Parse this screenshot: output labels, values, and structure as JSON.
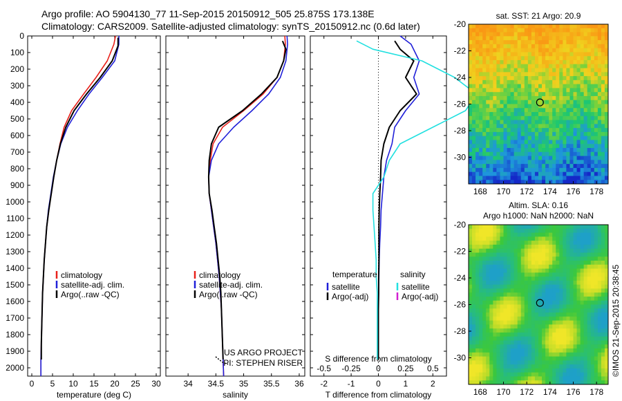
{
  "header": {
    "line1": "Argo profile: AO 5904130_77 11-Sep-2015 20150912_505 25.875S 173.138E",
    "line2": "Climatology: CARS2009. Satellite-adjusted climatology: synTS_20150912.nc (0.6d later)"
  },
  "side_stamp": "©IMOS 21-Sep-2015 20:38:45",
  "colors": {
    "climatology": "#e8201a",
    "satellite": "#1f1fd8",
    "argo": "#000000",
    "salinity_sat": "#22e0e0",
    "argo_adj": "#d020d0"
  },
  "chart_data": [
    {
      "type": "line",
      "xlabel": "temperature (deg C)",
      "xlim": [
        -1,
        31
      ],
      "xticks": [
        0,
        5,
        10,
        15,
        20,
        25,
        30
      ],
      "ylim": [
        2050,
        0
      ],
      "yticks": [
        0,
        100,
        200,
        300,
        400,
        500,
        600,
        700,
        800,
        900,
        1000,
        1100,
        1200,
        1300,
        1400,
        1500,
        1600,
        1700,
        1800,
        1900,
        2000
      ],
      "legend": {
        "placement": "lower-center",
        "entries": [
          "climatology",
          "satellite-adj. clim.",
          "Argo(..raw -QC)"
        ]
      },
      "series": [
        {
          "name": "climatology",
          "color": "#e8201a",
          "x": [
            20.2,
            19.8,
            18.2,
            15.5,
            12.5,
            9.6,
            7.8,
            6.8,
            6.0,
            5.3,
            4.7,
            4.1,
            3.6,
            3.3,
            3.0,
            2.8,
            2.6,
            2.5,
            2.4,
            2.3,
            2.2,
            2.2
          ],
          "y": [
            0,
            50,
            150,
            250,
            350,
            450,
            550,
            650,
            750,
            850,
            950,
            1050,
            1150,
            1250,
            1350,
            1450,
            1550,
            1650,
            1750,
            1850,
            1950,
            2050
          ]
        },
        {
          "name": "satellite-adj. clim.",
          "color": "#1f1fd8",
          "x": [
            21.0,
            21.0,
            20.0,
            17.0,
            13.8,
            11.0,
            8.6,
            7.0,
            6.0,
            5.2,
            4.6,
            4.0,
            3.6,
            3.3,
            3.0,
            2.8,
            2.6,
            2.5,
            2.4,
            2.3,
            2.2,
            2.2
          ],
          "y": [
            0,
            50,
            150,
            250,
            350,
            450,
            550,
            650,
            750,
            850,
            950,
            1050,
            1150,
            1250,
            1350,
            1450,
            1550,
            1650,
            1750,
            1850,
            1950,
            2050
          ]
        },
        {
          "name": "Argo(..raw -QC)",
          "color": "#000000",
          "x": [
            20.8,
            20.8,
            19.4,
            16.5,
            13.2,
            10.2,
            8.2,
            6.9,
            6.0,
            5.3,
            4.7,
            4.1,
            3.6,
            3.3,
            3.0,
            2.8,
            2.6,
            2.5,
            2.4,
            2.3,
            2.3
          ],
          "y": [
            10,
            60,
            150,
            250,
            350,
            450,
            550,
            650,
            750,
            850,
            950,
            1050,
            1150,
            1250,
            1350,
            1450,
            1550,
            1650,
            1750,
            1850,
            1950
          ]
        }
      ]
    },
    {
      "type": "line",
      "xlabel": "salinity",
      "xlim": [
        33.6,
        36.1
      ],
      "xticks": [
        34,
        34.5,
        35,
        35.5,
        36
      ],
      "ylim": [
        2050,
        0
      ],
      "legend": {
        "placement": "lower-center",
        "entries": [
          "climatology",
          "satellite-adj. clim.",
          "Argo(..raw -QC)"
        ]
      },
      "annotations": [
        "US ARGO PROJECT",
        "PI: STEPHEN RISER"
      ],
      "series": [
        {
          "name": "climatology",
          "color": "#e8201a",
          "x": [
            35.74,
            35.75,
            35.72,
            35.6,
            35.35,
            35.0,
            34.62,
            34.45,
            34.4,
            34.37,
            34.38,
            34.42,
            34.46,
            34.5,
            34.53,
            34.56,
            34.58,
            34.6,
            34.61,
            34.62,
            34.63,
            34.64
          ],
          "y": [
            0,
            50,
            150,
            250,
            350,
            450,
            550,
            650,
            750,
            850,
            950,
            1050,
            1150,
            1250,
            1350,
            1450,
            1550,
            1650,
            1750,
            1850,
            1950,
            2050
          ]
        },
        {
          "name": "satellite-adj. clim.",
          "color": "#1f1fd8",
          "x": [
            35.78,
            35.79,
            35.76,
            35.66,
            35.45,
            35.15,
            34.82,
            34.55,
            34.42,
            34.37,
            34.38,
            34.42,
            34.46,
            34.5,
            34.53,
            34.56,
            34.58,
            34.6,
            34.61,
            34.62,
            34.63,
            34.64
          ],
          "y": [
            0,
            50,
            150,
            250,
            350,
            450,
            550,
            650,
            750,
            850,
            950,
            1050,
            1150,
            1250,
            1350,
            1450,
            1550,
            1650,
            1750,
            1850,
            1950,
            2050
          ]
        },
        {
          "name": "Argo(..raw -QC)",
          "color": "#000000",
          "x": [
            35.7,
            35.76,
            35.72,
            35.6,
            35.32,
            34.98,
            34.55,
            34.42,
            34.38,
            34.37,
            34.38,
            34.43,
            34.47,
            34.51,
            34.54,
            34.57,
            34.59,
            34.6,
            34.61,
            34.62,
            34.63
          ],
          "y": [
            30,
            80,
            150,
            250,
            350,
            450,
            550,
            650,
            750,
            850,
            950,
            1050,
            1150,
            1250,
            1350,
            1450,
            1550,
            1650,
            1750,
            1850,
            1950
          ]
        }
      ]
    },
    {
      "type": "line",
      "xlabel": "T difference from climatology",
      "xlabel2": "S difference from climatology",
      "xlim": [
        -2.5,
        2.5
      ],
      "xticks": [
        -2,
        -1,
        0,
        1,
        2
      ],
      "x2ticks": [
        -0.5,
        -0.25,
        0,
        0.25,
        0.5
      ],
      "ylim": [
        2050,
        0
      ],
      "legend": {
        "placement": "lower-center",
        "left_title": "temperature",
        "right_title": "salinity",
        "entries_left": [
          "satellite",
          "Argo(-adj)"
        ],
        "entries_right": [
          "satellite",
          "Argo(-adj)"
        ]
      },
      "series": [
        {
          "name": "T satellite",
          "color": "#1f1fd8",
          "x": [
            0.8,
            1.2,
            1.5,
            1.3,
            1.5,
            1.0,
            0.6,
            0.5,
            0.3,
            0.2,
            0.15,
            0.1,
            0.08,
            0.05,
            0.03,
            0.02,
            0.01,
            0,
            0,
            0,
            0
          ],
          "y": [
            0,
            50,
            150,
            250,
            350,
            450,
            550,
            650,
            750,
            850,
            950,
            1050,
            1150,
            1250,
            1350,
            1450,
            1550,
            1650,
            1750,
            1850,
            1950
          ]
        },
        {
          "name": "T Argo(-adj)",
          "color": "#000000",
          "x": [
            0.6,
            0.8,
            1.3,
            1.0,
            1.4,
            0.8,
            0.4,
            0.2,
            0.1,
            0.08,
            0.05,
            0.03,
            0.02,
            0.02,
            0.02,
            0.01,
            0.01,
            0,
            0,
            0,
            0
          ],
          "y": [
            30,
            80,
            150,
            250,
            350,
            450,
            550,
            650,
            750,
            850,
            950,
            1050,
            1150,
            1250,
            1350,
            1450,
            1550,
            1650,
            1750,
            1850,
            1950
          ]
        },
        {
          "name": "S satellite",
          "color": "#22e0e0",
          "x": [
            -0.2,
            -0.05,
            0.4,
            0.7,
            0.9,
            0.8,
            0.5,
            0.2,
            0.1,
            0.05,
            -0.05,
            -0.05,
            -0.04,
            -0.03,
            -0.02,
            -0.02,
            -0.01,
            -0.01,
            -0.01,
            -0.01,
            -0.01
          ],
          "y": [
            30,
            80,
            150,
            250,
            350,
            450,
            550,
            650,
            750,
            850,
            950,
            1050,
            1150,
            1250,
            1350,
            1450,
            1550,
            1650,
            1750,
            1850,
            1950
          ]
        }
      ]
    },
    {
      "type": "heatmap",
      "title": "sat. SST: 21 Argo: 20.9",
      "xticks": [
        168,
        170,
        172,
        174,
        176,
        178
      ],
      "yticks": [
        -20,
        -22,
        -24,
        -26,
        -28,
        -30
      ],
      "xlim": [
        167,
        179
      ],
      "ylim": [
        -32,
        -20
      ],
      "marker": {
        "lon": 173.138,
        "lat": -25.875
      }
    },
    {
      "type": "heatmap",
      "title": "Altim. SLA: 0.16",
      "subtitle": "Argo h1000: NaN h2000: NaN",
      "xticks": [
        168,
        170,
        172,
        174,
        176,
        178
      ],
      "yticks": [
        -20,
        -22,
        -24,
        -26,
        -28,
        -30
      ],
      "xlim": [
        167,
        179
      ],
      "ylim": [
        -32,
        -20
      ],
      "marker": {
        "lon": 173.138,
        "lat": -25.875
      }
    }
  ]
}
